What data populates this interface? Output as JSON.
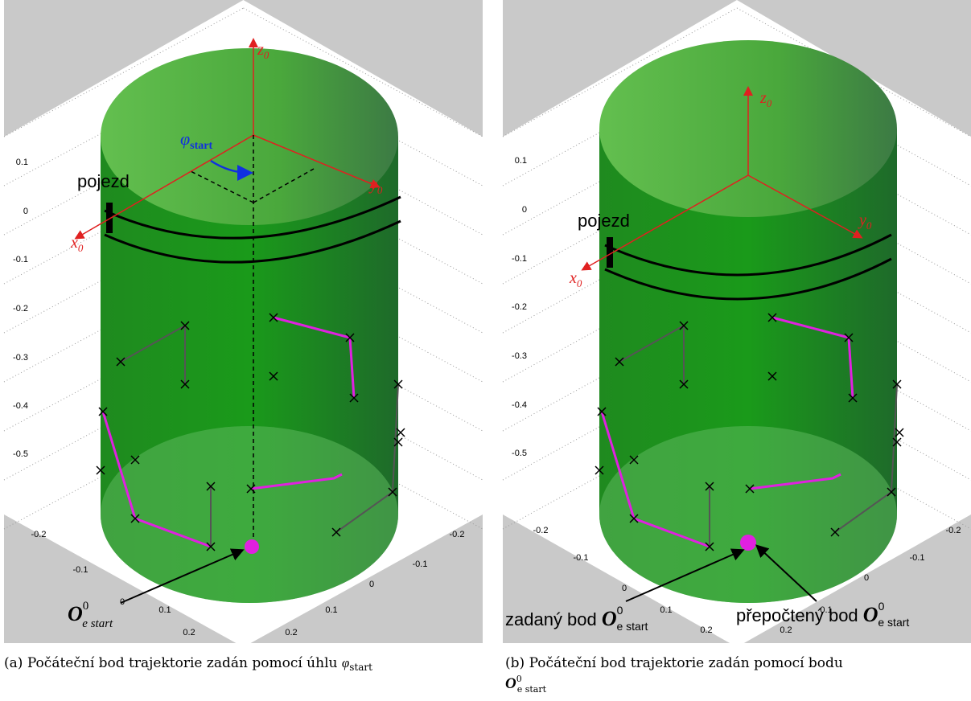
{
  "panels": [
    {
      "ticks_vertical": [
        "0.1",
        "0",
        "-0.1",
        "-0.2",
        "-0.3",
        "-0.4",
        "-0.5"
      ],
      "ticks_left": [
        "-0.2",
        "-0.1",
        "0",
        "0.1",
        "0.2"
      ],
      "ticks_right": [
        "-0.2",
        "-0.1",
        "0",
        "0.1",
        "0.2"
      ],
      "labels": {
        "z": {
          "base": "z",
          "sub": "0"
        },
        "y": {
          "base": "y",
          "sub": "0"
        },
        "x": {
          "base": "x",
          "sub": "0"
        },
        "phi": {
          "base": "φ",
          "sub": "start"
        },
        "pojezd": "pojezd",
        "point": {
          "base": "O",
          "sup": "0",
          "sub": "e start"
        }
      },
      "caption": {
        "tag": "(a)",
        "text": "Počáteční bod trajektorie zadán pomocí úhlu",
        "math": {
          "base": "φ",
          "sub": "start"
        }
      }
    },
    {
      "ticks_vertical": [
        "0.1",
        "0",
        "-0.1",
        "-0.2",
        "-0.3",
        "-0.4",
        "-0.5"
      ],
      "ticks_left": [
        "-0.2",
        "-0.1",
        "0",
        "0.1",
        "0.2"
      ],
      "ticks_right": [
        "-0.2",
        "-0.1",
        "0",
        "0.1",
        "0.2"
      ],
      "labels": {
        "z": {
          "base": "z",
          "sub": "0"
        },
        "y": {
          "base": "y",
          "sub": "0"
        },
        "x": {
          "base": "x",
          "sub": "0"
        },
        "pojezd": "pojezd",
        "given": {
          "prefix": "zadaný bod",
          "base": "O",
          "sup": "0",
          "sub": "e start"
        },
        "recalc": {
          "prefix": "přepočtený bod",
          "base": "O",
          "sup": "0",
          "sub": "e start"
        }
      },
      "caption": {
        "tag": "(b)",
        "text": "Počáteční bod trajektorie zadán pomocí bodu",
        "math": {
          "base": "O",
          "sup": "0",
          "sub": "e start"
        }
      }
    }
  ]
}
